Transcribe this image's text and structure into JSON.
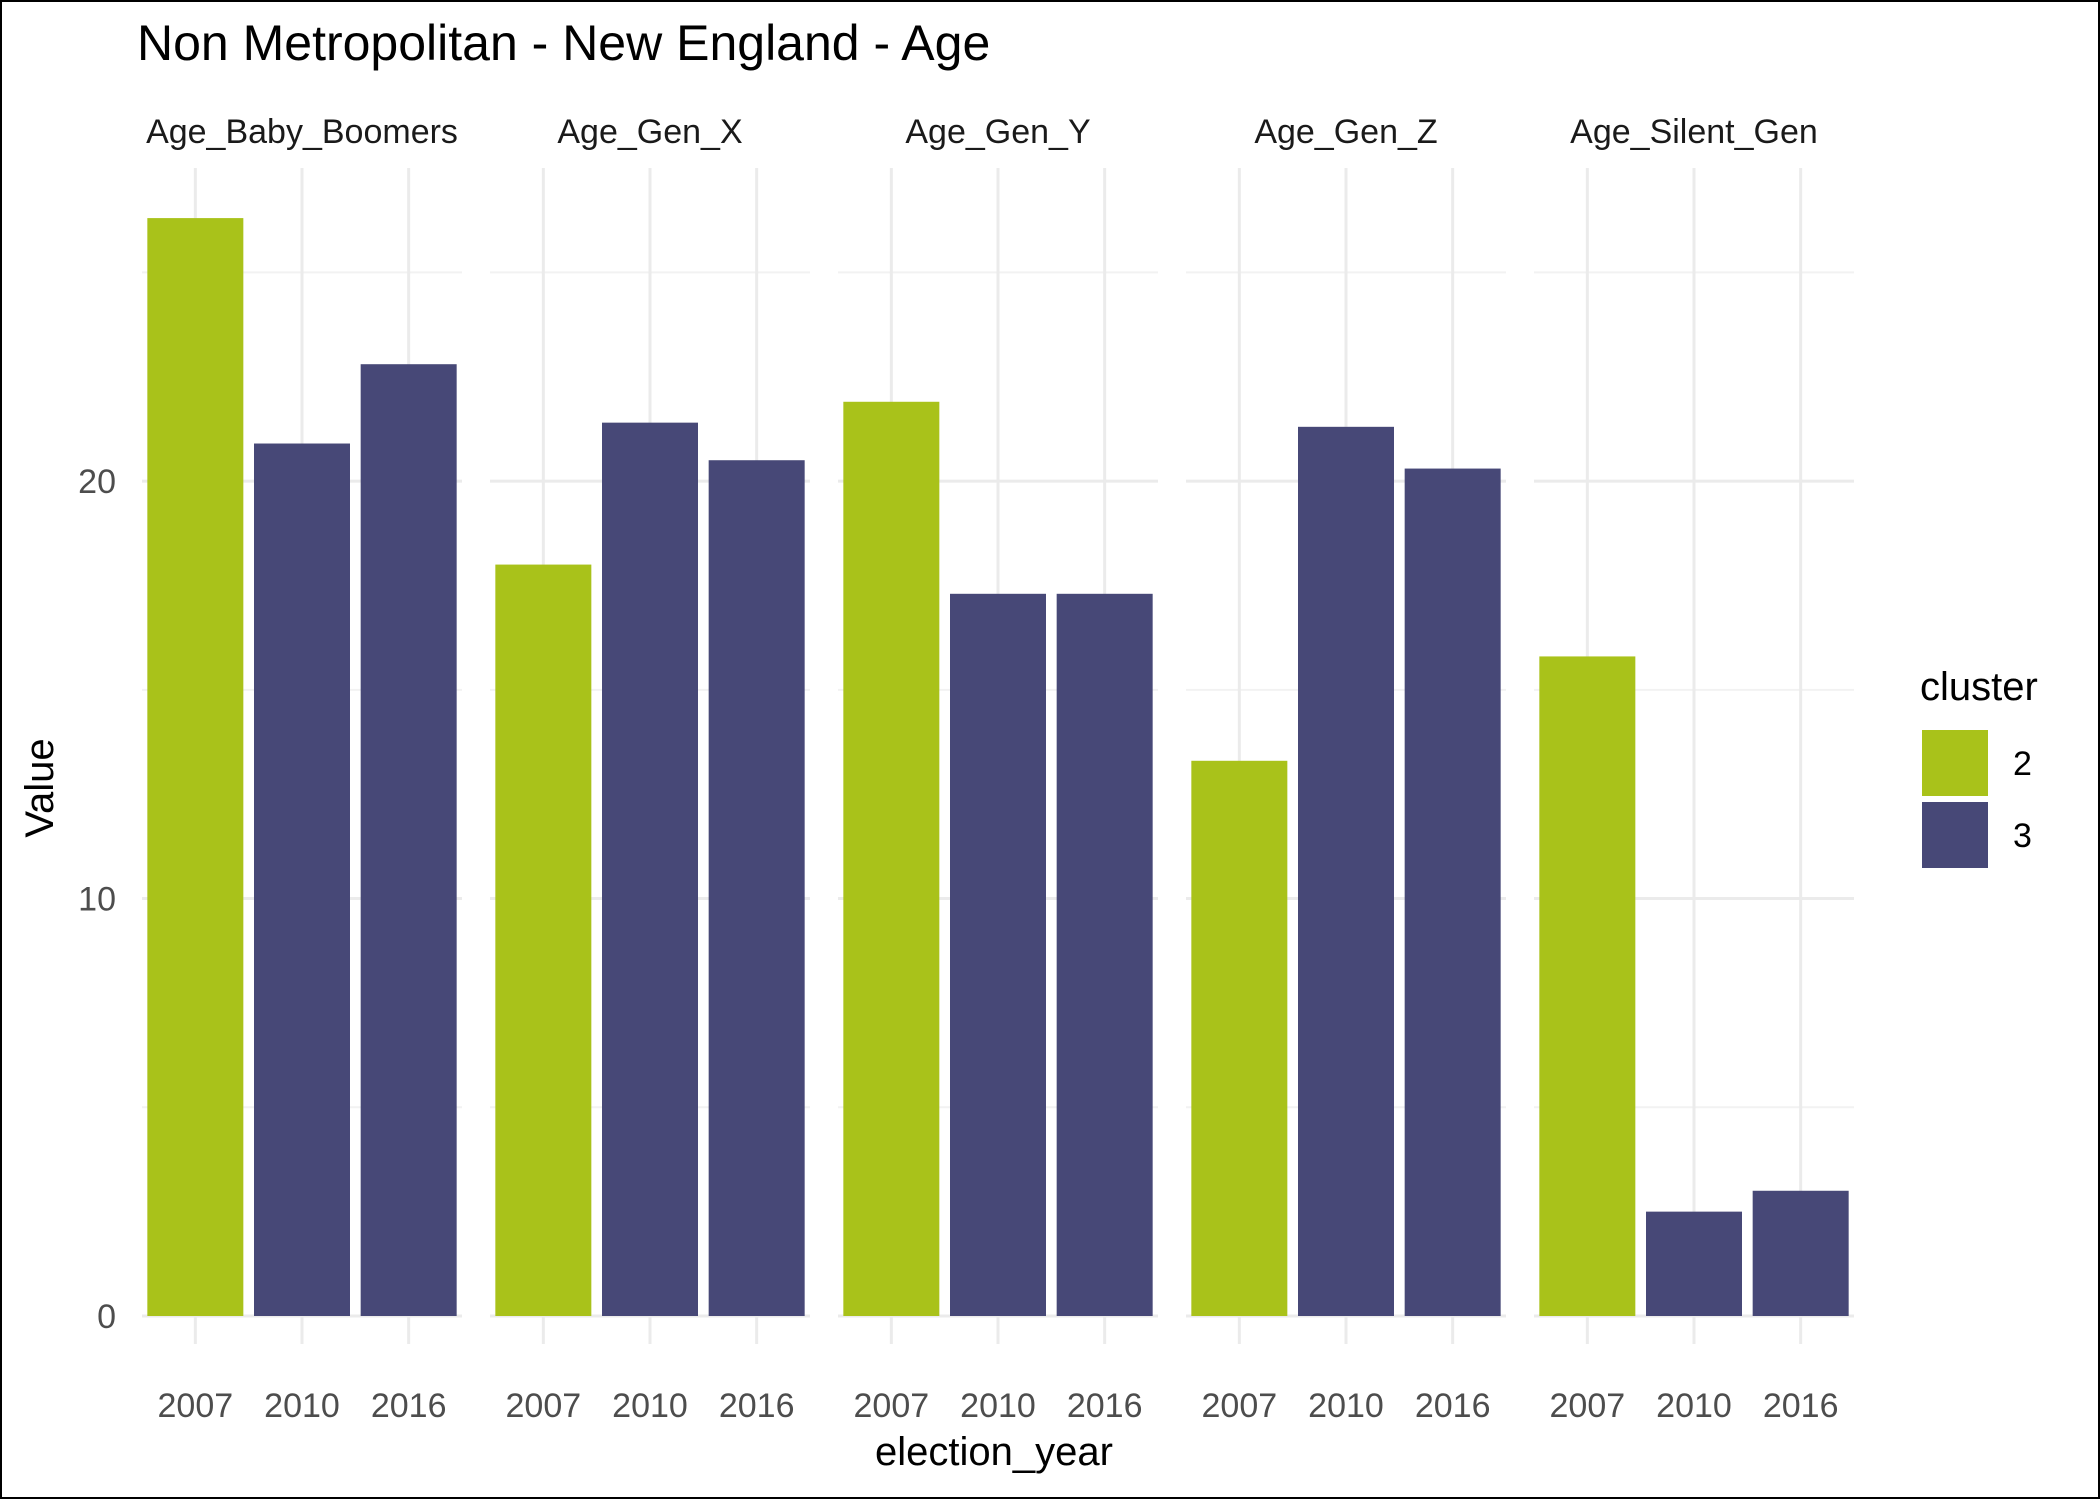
{
  "chart_data": {
    "type": "bar",
    "title": "Non Metropolitan - New England - Age",
    "xlabel": "election_year",
    "ylabel": "Value",
    "ylim": [
      0,
      27.5
    ],
    "y_ticks": [
      0,
      10,
      20
    ],
    "categories": [
      "2007",
      "2010",
      "2016"
    ],
    "facets": [
      {
        "name": "Age_Baby_Boomers",
        "values": [
          26.3,
          20.9,
          22.8
        ],
        "clusters": [
          "2",
          "3",
          "3"
        ]
      },
      {
        "name": "Age_Gen_X",
        "values": [
          18.0,
          21.4,
          20.5
        ],
        "clusters": [
          "2",
          "3",
          "3"
        ]
      },
      {
        "name": "Age_Gen_Y",
        "values": [
          21.9,
          17.3,
          17.3
        ],
        "clusters": [
          "2",
          "3",
          "3"
        ]
      },
      {
        "name": "Age_Gen_Z",
        "values": [
          13.3,
          21.3,
          20.3
        ],
        "clusters": [
          "2",
          "3",
          "3"
        ]
      },
      {
        "name": "Age_Silent_Gen",
        "values": [
          15.8,
          2.5,
          3.0
        ],
        "clusters": [
          "2",
          "3",
          "3"
        ]
      }
    ],
    "legend": {
      "title": "cluster",
      "placement": "right",
      "entries": [
        {
          "label": "2",
          "color": "#a9c21a"
        },
        {
          "label": "3",
          "color": "#474877"
        }
      ]
    },
    "grid": true
  }
}
